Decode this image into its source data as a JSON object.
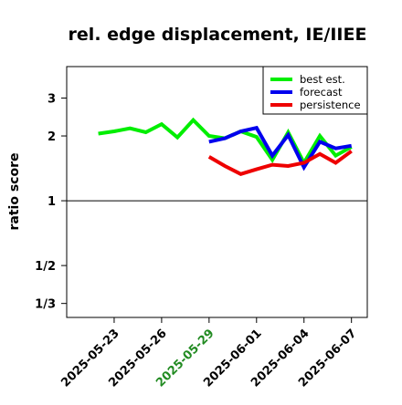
{
  "chart_data": {
    "type": "line",
    "title": "rel. edge displacement, IE/IIEE",
    "ylabel": "ratio score",
    "xlabel": "",
    "y_scale": "log",
    "ylim": [
      0.287,
      4.2
    ],
    "y_ticks": [
      {
        "value": 0.3333,
        "label": "1/3"
      },
      {
        "value": 0.5,
        "label": "1/2"
      },
      {
        "value": 1,
        "label": "1"
      },
      {
        "value": 2,
        "label": "2"
      },
      {
        "value": 3,
        "label": "3"
      }
    ],
    "reference_line": 1,
    "x_ticks": [
      {
        "date": "2025-05-23",
        "label": "2025-05-23",
        "color": "#000000"
      },
      {
        "date": "2025-05-26",
        "label": "2025-05-26",
        "color": "#000000"
      },
      {
        "date": "2025-05-29",
        "label": "2025-05-29",
        "color": "#228B22"
      },
      {
        "date": "2025-06-01",
        "label": "2025-06-01",
        "color": "#000000"
      },
      {
        "date": "2025-06-04",
        "label": "2025-06-04",
        "color": "#000000"
      },
      {
        "date": "2025-06-07",
        "label": "2025-06-07",
        "color": "#000000"
      }
    ],
    "xlim": [
      "2025-05-20",
      "2025-06-08"
    ],
    "legend_position": "top-right",
    "series": [
      {
        "name": "best est.",
        "color": "#00ee00",
        "points": [
          [
            "2025-05-22",
            2.05
          ],
          [
            "2025-05-23",
            2.1
          ],
          [
            "2025-05-24",
            2.17
          ],
          [
            "2025-05-25",
            2.08
          ],
          [
            "2025-05-26",
            2.27
          ],
          [
            "2025-05-27",
            1.97
          ],
          [
            "2025-05-28",
            2.37
          ],
          [
            "2025-05-29",
            2.0
          ],
          [
            "2025-05-30",
            1.95
          ],
          [
            "2025-05-31",
            2.1
          ],
          [
            "2025-06-01",
            1.98
          ],
          [
            "2025-06-02",
            1.55
          ],
          [
            "2025-06-03",
            2.08
          ],
          [
            "2025-06-04",
            1.5
          ],
          [
            "2025-06-05",
            2.0
          ],
          [
            "2025-06-06",
            1.62
          ],
          [
            "2025-06-07",
            1.78
          ]
        ]
      },
      {
        "name": "forecast",
        "color": "#0000ee",
        "points": [
          [
            "2025-05-29",
            1.88
          ],
          [
            "2025-05-30",
            1.95
          ],
          [
            "2025-05-31",
            2.1
          ],
          [
            "2025-06-01",
            2.18
          ],
          [
            "2025-06-02",
            1.62
          ],
          [
            "2025-06-03",
            2.02
          ],
          [
            "2025-06-04",
            1.43
          ],
          [
            "2025-06-05",
            1.88
          ],
          [
            "2025-06-06",
            1.75
          ],
          [
            "2025-06-07",
            1.8
          ]
        ]
      },
      {
        "name": "persistence",
        "color": "#ee0000",
        "points": [
          [
            "2025-05-29",
            1.6
          ],
          [
            "2025-05-30",
            1.45
          ],
          [
            "2025-05-31",
            1.33
          ],
          [
            "2025-06-01",
            1.4
          ],
          [
            "2025-06-02",
            1.47
          ],
          [
            "2025-06-03",
            1.45
          ],
          [
            "2025-06-04",
            1.5
          ],
          [
            "2025-06-05",
            1.65
          ],
          [
            "2025-06-06",
            1.5
          ],
          [
            "2025-06-07",
            1.7
          ]
        ]
      }
    ]
  }
}
